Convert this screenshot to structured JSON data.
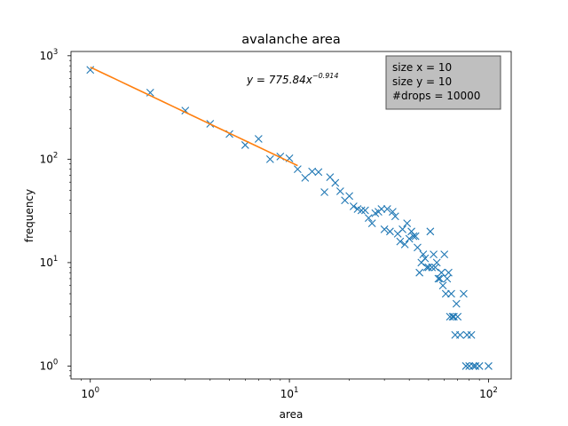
{
  "chart_data": {
    "type": "scatter",
    "title": "avalanche area",
    "xlabel": "area",
    "ylabel": "frequency",
    "xscale": "log",
    "yscale": "log",
    "xlim": [
      0.8,
      130
    ],
    "ylim": [
      0.75,
      1100
    ],
    "xticks": [
      {
        "value": 1,
        "base": "10",
        "exp": "0"
      },
      {
        "value": 10,
        "base": "10",
        "exp": "1"
      },
      {
        "value": 100,
        "base": "10",
        "exp": "2"
      }
    ],
    "yticks": [
      {
        "value": 1,
        "base": "10",
        "exp": "0"
      },
      {
        "value": 10,
        "base": "10",
        "exp": "1"
      },
      {
        "value": 100,
        "base": "10",
        "exp": "2"
      },
      {
        "value": 1000,
        "base": "10",
        "exp": "3"
      }
    ],
    "series": [
      {
        "marker": "x",
        "color": "#1f77b4",
        "points": [
          [
            1,
            730
          ],
          [
            2,
            440
          ],
          [
            3,
            295
          ],
          [
            4,
            220
          ],
          [
            5,
            175
          ],
          [
            6,
            137
          ],
          [
            7,
            157
          ],
          [
            8,
            100
          ],
          [
            9,
            106
          ],
          [
            10,
            102
          ],
          [
            11,
            80
          ],
          [
            12,
            66
          ],
          [
            13,
            76
          ],
          [
            14,
            75
          ],
          [
            15,
            48
          ],
          [
            16,
            67
          ],
          [
            17,
            59
          ],
          [
            18,
            49
          ],
          [
            19,
            40
          ],
          [
            20,
            44
          ],
          [
            21,
            35
          ],
          [
            22,
            33
          ],
          [
            23,
            32
          ],
          [
            24,
            32
          ],
          [
            25,
            27
          ],
          [
            26,
            24
          ],
          [
            27,
            30
          ],
          [
            28,
            31
          ],
          [
            29,
            33
          ],
          [
            30,
            21
          ],
          [
            31,
            33
          ],
          [
            32,
            20
          ],
          [
            33,
            31
          ],
          [
            34,
            28
          ],
          [
            35,
            19
          ],
          [
            36,
            16
          ],
          [
            37,
            21
          ],
          [
            38,
            15
          ],
          [
            39,
            24
          ],
          [
            40,
            17
          ],
          [
            41,
            20
          ],
          [
            42,
            18
          ],
          [
            43,
            18
          ],
          [
            44,
            14
          ],
          [
            45,
            8
          ],
          [
            46,
            10
          ],
          [
            47,
            12
          ],
          [
            48,
            11
          ],
          [
            49,
            9
          ],
          [
            50,
            9
          ],
          [
            51,
            20
          ],
          [
            52,
            9
          ],
          [
            53,
            12
          ],
          [
            54,
            9
          ],
          [
            55,
            10
          ],
          [
            56,
            7
          ],
          [
            57,
            7
          ],
          [
            58,
            8
          ],
          [
            59,
            6
          ],
          [
            60,
            12
          ],
          [
            61,
            5
          ],
          [
            62,
            7
          ],
          [
            63,
            8
          ],
          [
            64,
            3
          ],
          [
            65,
            5
          ],
          [
            66,
            3
          ],
          [
            67,
            3
          ],
          [
            68,
            2
          ],
          [
            69,
            4
          ],
          [
            70,
            3
          ],
          [
            72,
            2
          ],
          [
            75,
            5
          ],
          [
            77,
            1
          ],
          [
            78,
            2
          ],
          [
            80,
            1
          ],
          [
            82,
            2
          ],
          [
            84,
            1
          ],
          [
            86,
            1
          ],
          [
            90,
            1
          ],
          [
            100,
            1
          ]
        ]
      }
    ],
    "fit": {
      "color": "#ff7f0e",
      "a": 775.84,
      "b": -0.914,
      "x_range": [
        1,
        11
      ]
    },
    "annotation": {
      "prefix": "y = 775.84x",
      "exponent": "−0.914"
    },
    "legend": {
      "placement": "top-right",
      "background": "#bfbfbf",
      "lines": [
        "size x = 10",
        "size y = 10",
        "#drops = 10000"
      ]
    }
  }
}
